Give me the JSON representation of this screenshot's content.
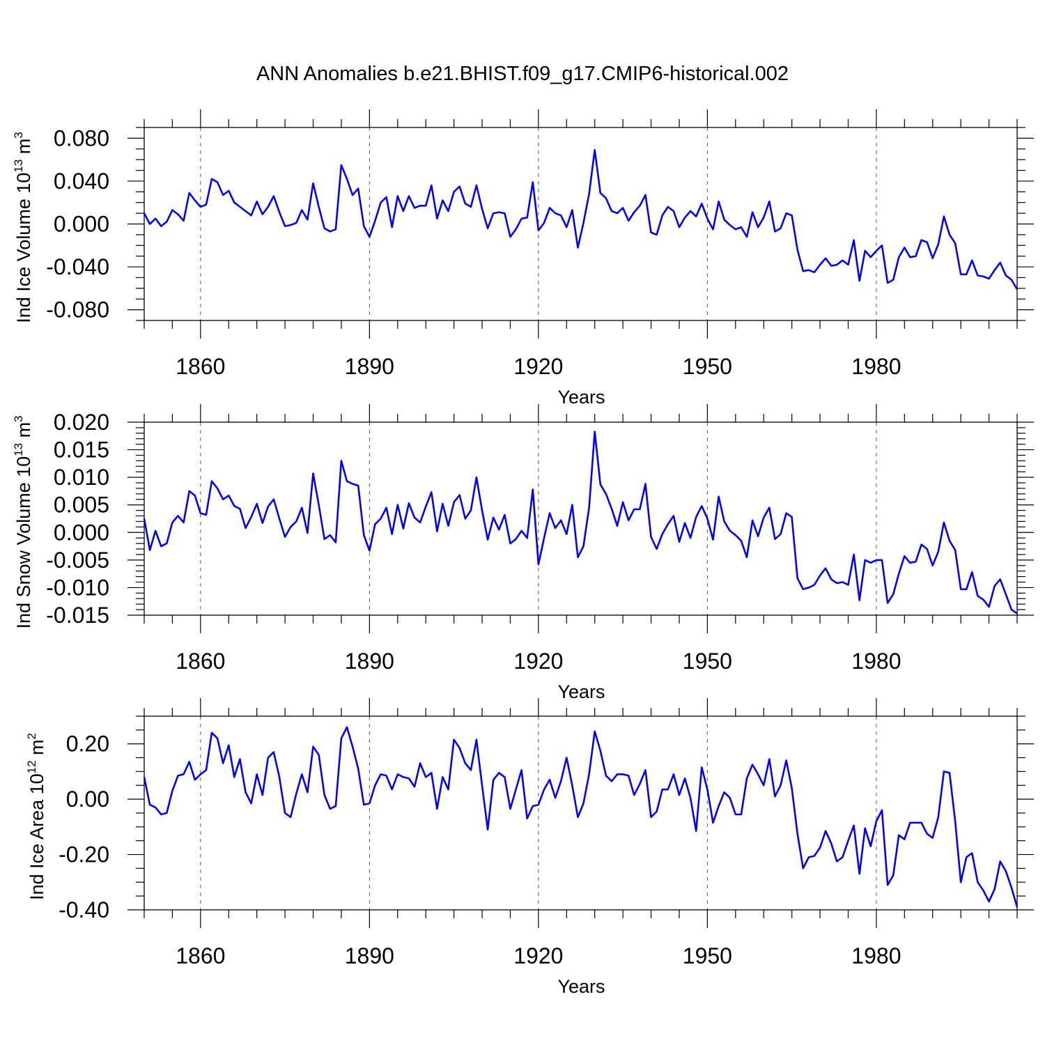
{
  "title": "ANN Anomalies b.e21.BHIST.f09_g17.CMIP6-historical.002",
  "line_color": "#0000ff",
  "chart_data": [
    {
      "type": "line",
      "ylabel": "Ind Ice Volume 10",
      "ylabel_exp": "13",
      "ylabel_unit": " m",
      "ylabel_unit_exp": "3",
      "xlabel": "Years",
      "xlim": [
        1850,
        2005
      ],
      "ylim": [
        -0.09,
        0.09
      ],
      "xticks": [
        1860,
        1890,
        1920,
        1950,
        1980
      ],
      "xtick_labels": [
        "1860",
        "1890",
        "1920",
        "1950",
        "1980"
      ],
      "yticks": [
        0.08,
        0.04,
        0.0,
        -0.04,
        -0.08
      ],
      "ytick_labels": [
        "0.080",
        "0.040",
        "0.000",
        "-0.040",
        "-0.080"
      ],
      "x_start": 1850,
      "values": [
        0.01,
        0.0,
        0.005,
        -0.002,
        0.002,
        0.013,
        0.009,
        0.003,
        0.029,
        0.022,
        0.016,
        0.018,
        0.042,
        0.039,
        0.027,
        0.031,
        0.02,
        0.016,
        0.012,
        0.008,
        0.021,
        0.009,
        0.016,
        0.026,
        0.011,
        -0.002,
        -0.001,
        0.001,
        0.013,
        0.004,
        0.038,
        0.016,
        -0.004,
        -0.007,
        -0.005,
        0.055,
        0.042,
        0.027,
        0.033,
        -0.002,
        -0.012,
        0.003,
        0.02,
        0.025,
        -0.003,
        0.026,
        0.012,
        0.026,
        0.015,
        0.017,
        0.017,
        0.036,
        0.005,
        0.022,
        0.012,
        0.03,
        0.035,
        0.019,
        0.016,
        0.036,
        0.014,
        -0.004,
        0.01,
        0.011,
        0.01,
        -0.012,
        -0.005,
        0.005,
        0.006,
        0.039,
        -0.006,
        0.001,
        0.015,
        0.01,
        0.008,
        -0.003,
        0.013,
        -0.022,
        0.001,
        0.028,
        0.069,
        0.029,
        0.024,
        0.012,
        0.01,
        0.015,
        0.003,
        0.011,
        0.017,
        0.027,
        -0.008,
        -0.01,
        0.008,
        0.016,
        0.012,
        -0.003,
        0.006,
        0.012,
        0.007,
        0.019,
        0.005,
        -0.005,
        0.021,
        0.004,
        -0.001,
        -0.005,
        -0.003,
        -0.012,
        0.011,
        -0.003,
        0.006,
        0.021,
        -0.007,
        -0.004,
        0.01,
        0.008,
        -0.024,
        -0.044,
        -0.043,
        -0.045,
        -0.038,
        -0.032,
        -0.039,
        -0.038,
        -0.034,
        -0.038,
        -0.015,
        -0.053,
        -0.025,
        -0.031,
        -0.025,
        -0.02,
        -0.055,
        -0.052,
        -0.031,
        -0.022,
        -0.031,
        -0.03,
        -0.015,
        -0.017,
        -0.032,
        -0.019,
        0.007,
        -0.01,
        -0.018,
        -0.047,
        -0.047,
        -0.034,
        -0.048,
        -0.049,
        -0.051,
        -0.043,
        -0.036,
        -0.048,
        -0.052,
        -0.061
      ]
    },
    {
      "type": "line",
      "ylabel": "Ind Snow Volume 10",
      "ylabel_exp": "13",
      "ylabel_unit": " m",
      "ylabel_unit_exp": "3",
      "xlabel": "Years",
      "xlim": [
        1850,
        2005
      ],
      "ylim": [
        -0.015,
        0.02
      ],
      "xticks": [
        1860,
        1890,
        1920,
        1950,
        1980
      ],
      "xtick_labels": [
        "1860",
        "1890",
        "1920",
        "1950",
        "1980"
      ],
      "yticks": [
        0.02,
        0.015,
        0.01,
        0.005,
        0.0,
        -0.005,
        -0.01,
        -0.015
      ],
      "ytick_labels": [
        "0.020",
        "0.015",
        "0.010",
        "0.005",
        "0.000",
        "-0.005",
        "-0.010",
        "-0.015"
      ],
      "x_start": 1850,
      "values": [
        0.0025,
        -0.0032,
        0.0003,
        -0.0025,
        -0.002,
        0.0018,
        0.003,
        0.0018,
        0.0075,
        0.0067,
        0.0035,
        0.0032,
        0.0093,
        0.008,
        0.006,
        0.0067,
        0.0048,
        0.0043,
        0.0008,
        0.0028,
        0.0052,
        0.0017,
        0.0047,
        0.006,
        0.0025,
        -0.0008,
        0.001,
        0.002,
        0.0045,
        -0.0001,
        0.0107,
        0.005,
        -0.0012,
        -0.0005,
        -0.0018,
        0.013,
        0.0093,
        0.0088,
        0.0085,
        -0.0005,
        -0.0033,
        0.0015,
        0.0025,
        0.0045,
        -0.0003,
        0.005,
        0.0007,
        0.0053,
        0.0027,
        0.0018,
        0.0047,
        0.0073,
        0.0002,
        0.0052,
        0.0012,
        0.0055,
        0.0068,
        0.0025,
        0.004,
        0.01,
        0.004,
        -0.0013,
        0.0027,
        0.0005,
        0.0032,
        -0.002,
        -0.0012,
        0.0003,
        -0.001,
        0.0078,
        -0.0058,
        -0.001,
        0.0035,
        0.0008,
        0.0022,
        -0.0003,
        0.005,
        -0.0045,
        -0.0025,
        0.0045,
        0.0183,
        0.0087,
        0.007,
        0.0043,
        0.0012,
        0.0055,
        0.0022,
        0.0042,
        0.0042,
        0.0088,
        -0.0008,
        -0.003,
        -0.0003,
        0.0015,
        0.003,
        -0.0017,
        0.0017,
        -0.001,
        0.0028,
        0.0048,
        0.0025,
        -0.0013,
        0.0065,
        0.002,
        0.0003,
        -0.0005,
        -0.0015,
        -0.0045,
        0.0022,
        -0.0007,
        0.0027,
        0.0045,
        -0.0012,
        -0.0003,
        0.0035,
        0.0028,
        -0.0083,
        -0.0103,
        -0.01,
        -0.0095,
        -0.0078,
        -0.0065,
        -0.0085,
        -0.0092,
        -0.009,
        -0.0095,
        -0.004,
        -0.0123,
        -0.005,
        -0.0055,
        -0.005,
        -0.005,
        -0.0128,
        -0.0112,
        -0.0075,
        -0.0043,
        -0.0055,
        -0.0053,
        -0.0022,
        -0.003,
        -0.006,
        -0.0035,
        0.0018,
        -0.0015,
        -0.0032,
        -0.0103,
        -0.0103,
        -0.0072,
        -0.0115,
        -0.0122,
        -0.0135,
        -0.0097,
        -0.0085,
        -0.0112,
        -0.014,
        -0.0147
      ]
    },
    {
      "type": "line",
      "ylabel": "Ind Ice Area 10",
      "ylabel_exp": "12",
      "ylabel_unit": " m",
      "ylabel_unit_exp": "2",
      "xlabel": "Years",
      "xlim": [
        1850,
        2005
      ],
      "ylim": [
        -0.4,
        0.3
      ],
      "xticks": [
        1860,
        1890,
        1920,
        1950,
        1980
      ],
      "xtick_labels": [
        "1860",
        "1890",
        "1920",
        "1950",
        "1980"
      ],
      "yticks": [
        0.2,
        0.0,
        -0.2,
        -0.4
      ],
      "ytick_labels": [
        "0.20",
        "0.00",
        "-0.20",
        "-0.40"
      ],
      "x_start": 1850,
      "values": [
        0.08,
        -0.02,
        -0.03,
        -0.055,
        -0.05,
        0.03,
        0.085,
        0.09,
        0.135,
        0.07,
        0.09,
        0.105,
        0.24,
        0.22,
        0.13,
        0.195,
        0.08,
        0.145,
        0.025,
        -0.015,
        0.09,
        0.015,
        0.15,
        0.17,
        0.08,
        -0.05,
        -0.065,
        0.02,
        0.09,
        0.025,
        0.19,
        0.16,
        0.015,
        -0.035,
        -0.025,
        0.22,
        0.26,
        0.19,
        0.11,
        -0.02,
        -0.015,
        0.05,
        0.09,
        0.085,
        0.035,
        0.09,
        0.08,
        0.075,
        0.045,
        0.13,
        0.08,
        0.095,
        -0.035,
        0.08,
        0.035,
        0.215,
        0.185,
        0.13,
        0.105,
        0.215,
        0.05,
        -0.11,
        0.07,
        0.095,
        0.08,
        -0.035,
        0.035,
        0.105,
        -0.07,
        -0.025,
        -0.02,
        0.035,
        0.07,
        0.005,
        0.065,
        0.15,
        0.05,
        -0.065,
        -0.015,
        0.09,
        0.245,
        0.175,
        0.085,
        0.065,
        0.09,
        0.09,
        0.085,
        0.015,
        0.055,
        0.105,
        -0.065,
        -0.045,
        0.035,
        0.035,
        0.09,
        0.015,
        0.075,
        0.005,
        -0.115,
        0.115,
        0.035,
        -0.085,
        -0.025,
        0.025,
        0.005,
        -0.055,
        -0.055,
        0.075,
        0.125,
        0.09,
        0.05,
        0.145,
        0.01,
        0.05,
        0.14,
        0.04,
        -0.125,
        -0.25,
        -0.21,
        -0.205,
        -0.175,
        -0.115,
        -0.16,
        -0.225,
        -0.21,
        -0.15,
        -0.095,
        -0.27,
        -0.105,
        -0.17,
        -0.08,
        -0.04,
        -0.31,
        -0.275,
        -0.13,
        -0.145,
        -0.085,
        -0.085,
        -0.085,
        -0.125,
        -0.14,
        -0.065,
        0.1,
        0.095,
        -0.08,
        -0.3,
        -0.21,
        -0.195,
        -0.3,
        -0.33,
        -0.37,
        -0.325,
        -0.225,
        -0.26,
        -0.32,
        -0.39
      ]
    }
  ]
}
